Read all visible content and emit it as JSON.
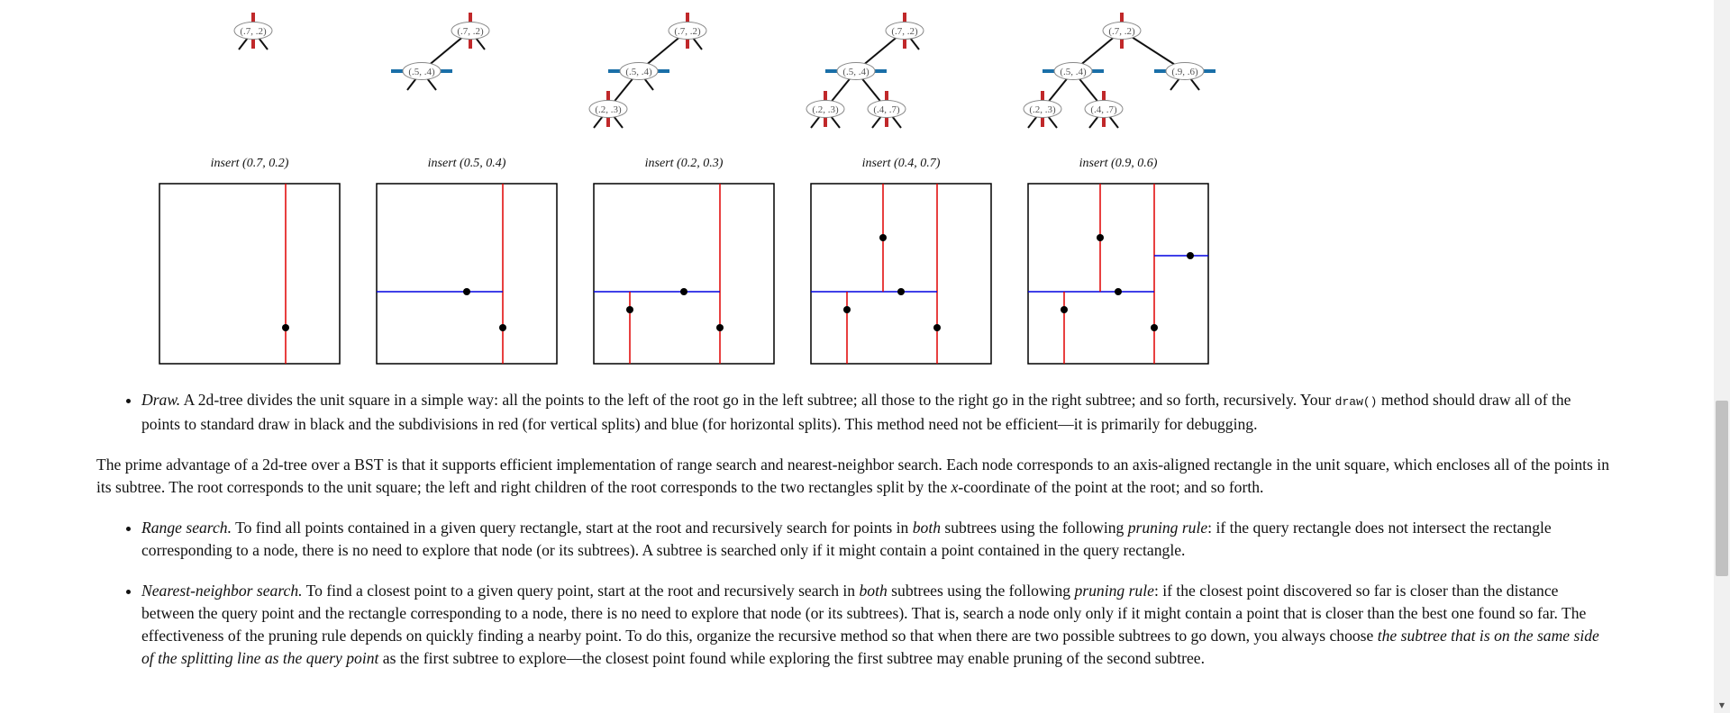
{
  "figure": {
    "steps": [
      {
        "caption": "insert (0.7, 0.2)",
        "nodes": [
          {
            "id": "root",
            "label": "(.7, .2)",
            "split": "vertical",
            "parent": null
          }
        ]
      },
      {
        "caption": "insert (0.5, 0.4)",
        "nodes": [
          {
            "id": "root",
            "label": "(.7, .2)",
            "split": "vertical",
            "parent": null
          },
          {
            "id": "n54",
            "label": "(.5, .4)",
            "split": "horizontal",
            "parent": "root"
          }
        ]
      },
      {
        "caption": "insert (0.2, 0.3)",
        "nodes": [
          {
            "id": "root",
            "label": "(.7, .2)",
            "split": "vertical",
            "parent": null
          },
          {
            "id": "n54",
            "label": "(.5, .4)",
            "split": "horizontal",
            "parent": "root"
          },
          {
            "id": "n23",
            "label": "(.2, .3)",
            "split": "vertical",
            "parent": "n54"
          }
        ]
      },
      {
        "caption": "insert (0.4, 0.7)",
        "nodes": [
          {
            "id": "root",
            "label": "(.7, .2)",
            "split": "vertical",
            "parent": null
          },
          {
            "id": "n54",
            "label": "(.5, .4)",
            "split": "horizontal",
            "parent": "root"
          },
          {
            "id": "n23",
            "label": "(.2, .3)",
            "split": "vertical",
            "parent": "n54"
          },
          {
            "id": "n47",
            "label": "(.4, .7)",
            "split": "vertical",
            "parent": "n54"
          }
        ]
      },
      {
        "caption": "insert (0.9, 0.6)",
        "nodes": [
          {
            "id": "root",
            "label": "(.7, .2)",
            "split": "vertical",
            "parent": null
          },
          {
            "id": "n54",
            "label": "(.5, .4)",
            "split": "horizontal",
            "parent": "root"
          },
          {
            "id": "n23",
            "label": "(.2, .3)",
            "split": "vertical",
            "parent": "n54"
          },
          {
            "id": "n47",
            "label": "(.4, .7)",
            "split": "vertical",
            "parent": "n54"
          },
          {
            "id": "n96",
            "label": "(.9, .6)",
            "split": "horizontal",
            "parent": "root"
          }
        ]
      }
    ],
    "colors": {
      "vertical_split": "#e00000",
      "horizontal_split": "#0000e0",
      "tree_vertical_bar": "#c0282a",
      "tree_horizontal_bar": "#1a6fa8",
      "point": "#000000",
      "square_border": "#000000"
    }
  },
  "content": {
    "draw_item": {
      "term": "Draw.",
      "text_before_code": " A 2d-tree divides the unit square in a simple way: all the points to the left of the root go in the left subtree; all those to the right go in the right subtree; and so forth, recursively. Your ",
      "code": "draw()",
      "text_after_code": " method should draw all of the points to standard draw in black and the subdivisions in red (for vertical splits) and blue (for horizontal splits). This method need not be efficient—it is primarily for debugging."
    },
    "advantage_paragraph": {
      "text_before_em": "The prime advantage of a 2d-tree over a BST is that it supports efficient implementation of range search and nearest-neighbor search. Each node corresponds to an axis-aligned rectangle in the unit square, which encloses all of the points in its subtree. The root corresponds to the unit square; the left and right children of the root corresponds to the two rectangles split by the ",
      "em": "x",
      "text_after_em": "-coordinate of the point at the root; and so forth."
    },
    "range_item": {
      "term": "Range search.",
      "text1": " To find all points contained in a given query rectangle, start at the root and recursively search for points in ",
      "em1": "both",
      "text2": " subtrees using the following ",
      "em2": "pruning rule",
      "text3": ": if the query rectangle does not intersect the rectangle corresponding to a node, there is no need to explore that node (or its subtrees). A subtree is searched only if it might contain a point contained in the query rectangle."
    },
    "nn_item": {
      "term": "Nearest-neighbor search.",
      "text1": " To find a closest point to a given query point, start at the root and recursively search in ",
      "em1": "both",
      "text2": " subtrees using the following ",
      "em2": "pruning rule",
      "text3": ": if the closest point discovered so far is closer than the distance between the query point and the rectangle corresponding to a node, there is no need to explore that node (or its subtrees). That is, search a node only only if it might contain a point that is closer than the best one found so far. The effectiveness of the pruning rule depends on quickly finding a nearby point. To do this, organize the recursive method so that when there are two possible subtrees to go down, you always choose ",
      "em3": "the subtree that is on the same side of the splitting line as the query point",
      "text4": " as the first subtree to explore—the closest point found while exploring the first subtree may enable pruning of the second subtree."
    }
  }
}
